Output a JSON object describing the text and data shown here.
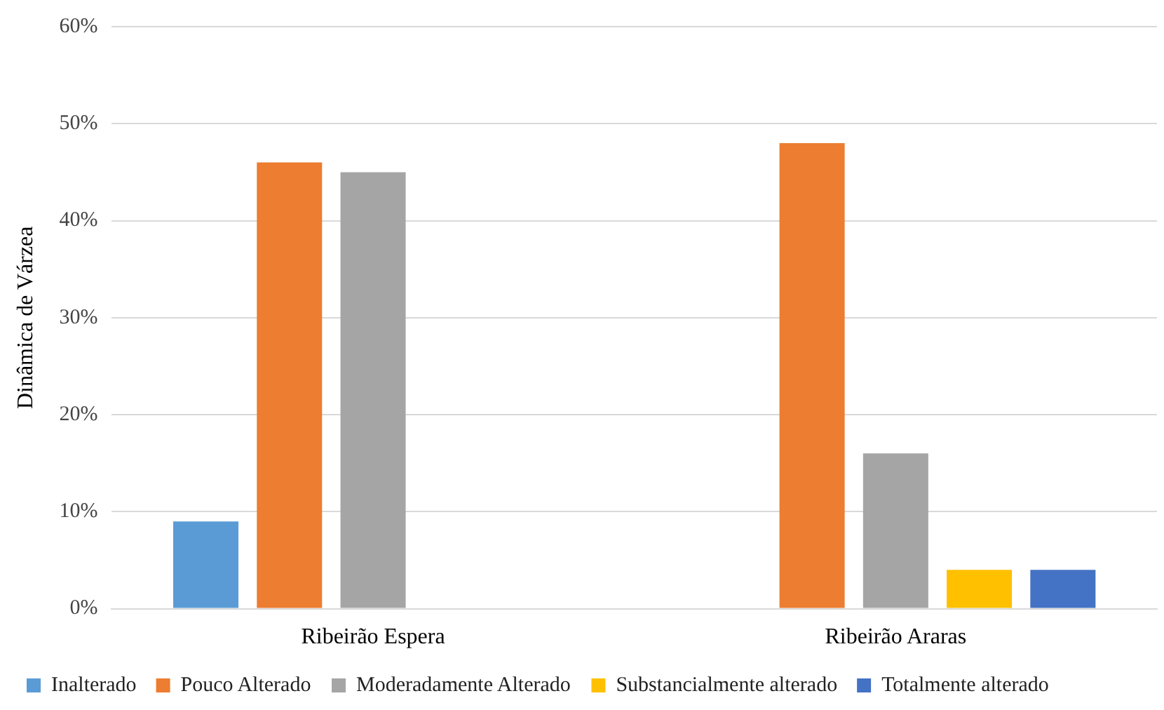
{
  "chart_data": {
    "type": "bar",
    "ylabel": "Dinâmica de Várzea",
    "categories": [
      "Ribeirão Espera",
      "Ribeirão Araras"
    ],
    "series": [
      {
        "name": "Inalterado",
        "color": "#5b9bd5",
        "values": [
          9,
          0
        ]
      },
      {
        "name": "Pouco Alterado",
        "color": "#ed7d31",
        "values": [
          46,
          48
        ]
      },
      {
        "name": "Moderadamente Alterado",
        "color": "#a5a5a5",
        "values": [
          45,
          16
        ]
      },
      {
        "name": "Substancialmente alterado",
        "color": "#ffc000",
        "values": [
          0,
          4
        ]
      },
      {
        "name": "Totalmente alterado",
        "color": "#4472c4",
        "values": [
          0,
          4
        ]
      }
    ],
    "ylim": [
      0,
      60
    ],
    "yticks": [
      {
        "value": 0,
        "label": "0%"
      },
      {
        "value": 10,
        "label": "10%"
      },
      {
        "value": 20,
        "label": "20%"
      },
      {
        "value": 30,
        "label": "30%"
      },
      {
        "value": 40,
        "label": "40%"
      },
      {
        "value": 50,
        "label": "50%"
      },
      {
        "value": 60,
        "label": "60%"
      }
    ],
    "grid": "y",
    "legend": "bottom"
  }
}
